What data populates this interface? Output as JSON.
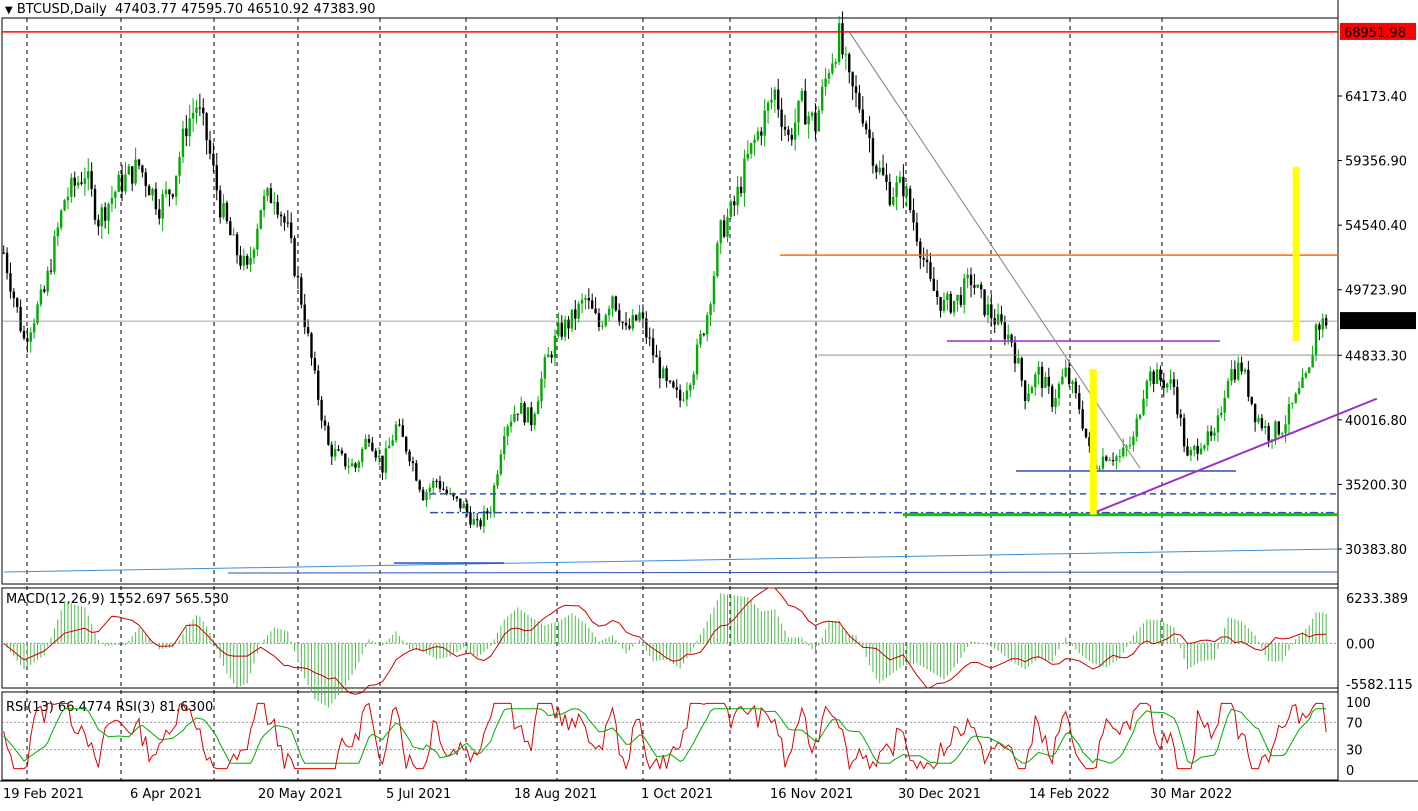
{
  "symbol": "BTCUSD",
  "timeframe": "Daily",
  "header": {
    "symbol_label": "BTCUSD,Daily",
    "ohlc_text": "47403.77 47595.70 46510.92 47383.90"
  },
  "chart_data": {
    "type": "candlestick",
    "price_axis_labels": [
      "64173.40",
      "59356.90",
      "54540.40",
      "49723.90",
      "44833.30",
      "40016.80",
      "35200.30",
      "30383.80"
    ],
    "price_axis_values": [
      64173.4,
      59356.9,
      54540.4,
      49723.9,
      44833.3,
      40016.8,
      35200.3,
      30383.8
    ],
    "ylim": [
      27600,
      70500
    ],
    "x_axis_labels": [
      "19 Feb 2021",
      "6 Apr 2021",
      "20 May 2021",
      "5 Jul 2021",
      "18 Aug 2021",
      "1 Oct 2021",
      "16 Nov 2021",
      "30 Dec 2021",
      "14 Feb 2022",
      "30 Mar 2022"
    ],
    "grid": "vertical dashed",
    "current_price": {
      "label": "47383.90",
      "value": 47383.9
    },
    "highlighted_level": {
      "label": "68951.98",
      "value": 68951.98,
      "color": "#ff0000"
    },
    "horizontal_levels": [
      {
        "value": 68951.98,
        "color": "#ff0000",
        "style": "solid"
      },
      {
        "value": 52300,
        "color": "#ff6a00",
        "style": "solid"
      },
      {
        "value": 45900,
        "color": "#9b30c9",
        "style": "solid"
      },
      {
        "value": 44850,
        "color": "#808080",
        "style": "solid"
      },
      {
        "value": 36200,
        "color": "#2f4fb5",
        "style": "solid"
      },
      {
        "value": 34500,
        "color": "#2f4fb5",
        "style": "dashed"
      },
      {
        "value": 33100,
        "color": "#2f4fb5",
        "style": "dash-dot"
      },
      {
        "value": 32950,
        "color": "#00cc00",
        "style": "solid"
      }
    ],
    "close_path": [
      [
        0,
        52500
      ],
      [
        6,
        46000
      ],
      [
        12,
        49500
      ],
      [
        18,
        56500
      ],
      [
        24,
        58500
      ],
      [
        28,
        55000
      ],
      [
        34,
        57500
      ],
      [
        40,
        59000
      ],
      [
        46,
        56000
      ],
      [
        50,
        57500
      ],
      [
        54,
        62000
      ],
      [
        57,
        63500
      ],
      [
        60,
        61000
      ],
      [
        64,
        56000
      ],
      [
        68,
        53000
      ],
      [
        72,
        51000
      ],
      [
        76,
        56000
      ],
      [
        80,
        57000
      ],
      [
        84,
        54000
      ],
      [
        88,
        49000
      ],
      [
        92,
        43000
      ],
      [
        96,
        38000
      ],
      [
        100,
        37000
      ],
      [
        104,
        36500
      ],
      [
        108,
        39000
      ],
      [
        112,
        36500
      ],
      [
        116,
        39500
      ],
      [
        120,
        37500
      ],
      [
        124,
        34500
      ],
      [
        128,
        35500
      ],
      [
        132,
        34200
      ],
      [
        136,
        33500
      ],
      [
        140,
        32000
      ],
      [
        144,
        33500
      ],
      [
        148,
        39500
      ],
      [
        152,
        41000
      ],
      [
        156,
        40000
      ],
      [
        160,
        44000
      ],
      [
        164,
        46500
      ],
      [
        168,
        47500
      ],
      [
        172,
        49000
      ],
      [
        176,
        47000
      ],
      [
        180,
        49500
      ],
      [
        184,
        46500
      ],
      [
        188,
        47800
      ],
      [
        192,
        45000
      ],
      [
        196,
        42500
      ],
      [
        200,
        41500
      ],
      [
        204,
        44000
      ],
      [
        208,
        48000
      ],
      [
        212,
        54000
      ],
      [
        216,
        56000
      ],
      [
        220,
        59500
      ],
      [
        224,
        62000
      ],
      [
        228,
        64500
      ],
      [
        232,
        61000
      ],
      [
        236,
        63500
      ],
      [
        240,
        62000
      ],
      [
        244,
        66500
      ],
      [
        247,
        68500
      ],
      [
        250,
        65000
      ],
      [
        254,
        63000
      ],
      [
        258,
        59000
      ],
      [
        262,
        57000
      ],
      [
        266,
        57500
      ],
      [
        270,
        54000
      ],
      [
        274,
        50000
      ],
      [
        278,
        48500
      ],
      [
        282,
        49000
      ],
      [
        286,
        50500
      ],
      [
        290,
        48500
      ],
      [
        294,
        47200
      ],
      [
        298,
        46000
      ],
      [
        302,
        42000
      ],
      [
        306,
        43500
      ],
      [
        310,
        41500
      ],
      [
        314,
        43500
      ],
      [
        318,
        41000
      ],
      [
        322,
        36500
      ],
      [
        326,
        37500
      ],
      [
        330,
        37200
      ],
      [
        334,
        38500
      ],
      [
        338,
        43500
      ],
      [
        342,
        43000
      ],
      [
        346,
        42500
      ],
      [
        350,
        37000
      ],
      [
        354,
        38500
      ],
      [
        358,
        38500
      ],
      [
        362,
        43500
      ],
      [
        366,
        44000
      ],
      [
        370,
        40500
      ],
      [
        374,
        39000
      ],
      [
        378,
        39500
      ],
      [
        382,
        41500
      ],
      [
        386,
        43500
      ],
      [
        388,
        47000
      ],
      [
        391,
        47380
      ]
    ],
    "annotations": [
      {
        "type": "trendline",
        "from": [
          250,
          68951.98
        ],
        "to": [
          336,
          36400
        ],
        "color": "#808080"
      },
      {
        "type": "trendline",
        "from": [
          321,
          32950
        ],
        "to": [
          406,
          41600
        ],
        "color": "#9b30c9"
      },
      {
        "type": "bar-marker",
        "x": 322,
        "from": 32950,
        "to": 43800,
        "color": "#ffff00"
      },
      {
        "type": "bar-marker",
        "x": 382,
        "from": 45900,
        "to": 58900,
        "color": "#ffff00"
      }
    ],
    "macd": {
      "label": "MACD(12,26,9) 1552.697 565.530",
      "params": "12,26,9",
      "macd": 1552.697,
      "signal": 565.53,
      "axis_labels": [
        "6233.389",
        "0.00",
        "-5582.115"
      ],
      "axis_values": [
        6233.389,
        0,
        -5582.115
      ]
    },
    "rsi": {
      "label": "RSI(13) 66.4774  RSI(3) 81.6300",
      "rsi13": 66.4774,
      "rsi3": 81.63,
      "axis_labels": [
        "100",
        "70",
        "30",
        "0"
      ],
      "axis_values": [
        100,
        70,
        30,
        0
      ]
    }
  },
  "colors": {
    "bull_candle": "#00aa00",
    "bear_candle": "#000000",
    "grid": "#000000",
    "level_red": "#ff0000",
    "level_orange": "#ff6a00",
    "level_purple": "#9b30c9",
    "level_blue": "#2f4fb5",
    "level_green": "#00cc00",
    "highlight_yellow": "#ffff00",
    "macd_hist": "#4cbb4c",
    "macd_signal": "#cc0000",
    "rsi_fast": "#dd0000",
    "rsi_slow": "#00aa00"
  }
}
